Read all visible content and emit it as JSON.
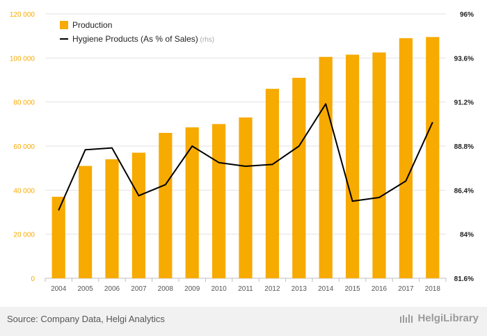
{
  "chart_data": {
    "type": "bar",
    "categories": [
      "2004",
      "2005",
      "2006",
      "2007",
      "2008",
      "2009",
      "2010",
      "2011",
      "2012",
      "2013",
      "2014",
      "2015",
      "2016",
      "2017",
      "2018"
    ],
    "series": [
      {
        "name": "Production",
        "type": "bar",
        "axis": "left",
        "color": "#f7aa00",
        "values": [
          37000,
          51000,
          54000,
          57000,
          66000,
          68500,
          70000,
          73000,
          86000,
          91000,
          100500,
          101500,
          102500,
          109000,
          109500
        ]
      },
      {
        "name": "Hygiene Products (As % of Sales)",
        "type": "line",
        "axis": "right",
        "color": "#000000",
        "values": [
          85.3,
          88.6,
          88.7,
          86.1,
          86.7,
          88.8,
          87.9,
          87.7,
          87.8,
          88.8,
          91.1,
          85.8,
          86.0,
          86.9,
          90.1
        ]
      }
    ],
    "legend_rhs_note": "(rhs)",
    "left_axis": {
      "ylim": [
        0,
        120000
      ],
      "ticks": [
        "0",
        "20 000",
        "40 000",
        "60 000",
        "80 000",
        "100 000",
        "120 000"
      ]
    },
    "right_axis": {
      "ylim": [
        81.6,
        96
      ],
      "ticks": [
        "81.6%",
        "84%",
        "86.4%",
        "88.8%",
        "91.2%",
        "93.6%",
        "96%"
      ]
    },
    "grid": true,
    "legend_position": "top-left",
    "axis_label_color": "#f7aa00"
  },
  "footer": {
    "source": "Source: Company Data, Helgi Analytics",
    "brand": "HelgiLibrary"
  }
}
